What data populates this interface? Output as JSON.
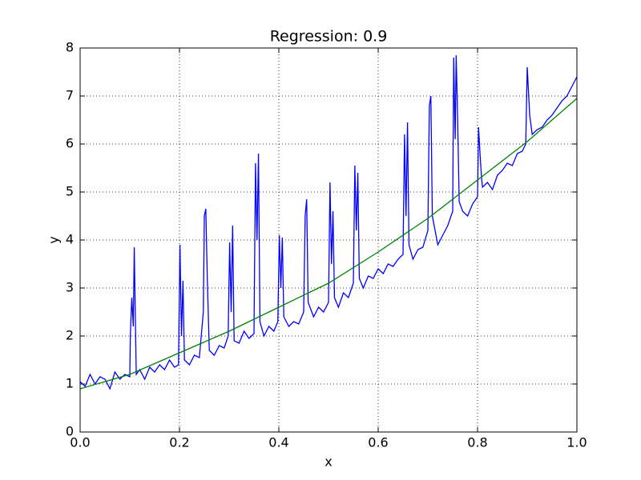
{
  "chart_data": {
    "type": "line",
    "title": "Regression: 0.9",
    "x_label": "x",
    "y_label": "y",
    "xlim": [
      0,
      1
    ],
    "ylim": [
      0,
      8
    ],
    "xticks": [
      {
        "value": 0,
        "label": "0.0"
      },
      0.2,
      0.4,
      0.6,
      0.8,
      {
        "value": 1,
        "label": "1.0"
      }
    ],
    "yticks": [
      0,
      1,
      2,
      3,
      4,
      5,
      6,
      7,
      8
    ],
    "grid": true,
    "series": [
      {
        "color": "#0000ff",
        "x": [
          0,
          0.01,
          0.02,
          0.03,
          0.04,
          0.05,
          0.06,
          0.07,
          0.08,
          0.09,
          0.1,
          0.101,
          0.104,
          0.107,
          0.109,
          0.111,
          0.113,
          0.12,
          0.13,
          0.14,
          0.15,
          0.16,
          0.17,
          0.18,
          0.19,
          0.198,
          0.201,
          0.204,
          0.207,
          0.21,
          0.22,
          0.23,
          0.24,
          0.248,
          0.25,
          0.253,
          0.256,
          0.26,
          0.27,
          0.28,
          0.29,
          0.298,
          0.301,
          0.304,
          0.307,
          0.31,
          0.32,
          0.33,
          0.34,
          0.35,
          0.353,
          0.356,
          0.359,
          0.362,
          0.37,
          0.38,
          0.39,
          0.398,
          0.401,
          0.404,
          0.407,
          0.41,
          0.42,
          0.43,
          0.44,
          0.45,
          0.453,
          0.456,
          0.459,
          0.47,
          0.48,
          0.49,
          0.5,
          0.503,
          0.506,
          0.509,
          0.512,
          0.52,
          0.53,
          0.54,
          0.55,
          0.553,
          0.556,
          0.559,
          0.562,
          0.57,
          0.58,
          0.59,
          0.6,
          0.61,
          0.62,
          0.63,
          0.64,
          0.65,
          0.653,
          0.656,
          0.659,
          0.662,
          0.67,
          0.68,
          0.69,
          0.7,
          0.703,
          0.706,
          0.709,
          0.72,
          0.73,
          0.74,
          0.75,
          0.752,
          0.755,
          0.757,
          0.76,
          0.763,
          0.77,
          0.78,
          0.79,
          0.8,
          0.802,
          0.805,
          0.808,
          0.81,
          0.82,
          0.83,
          0.84,
          0.85,
          0.86,
          0.87,
          0.88,
          0.89,
          0.897,
          0.9,
          0.905,
          0.91,
          0.92,
          0.93,
          0.94,
          0.95,
          0.96,
          0.97,
          0.98,
          0.99,
          1
        ],
        "values": [
          1.05,
          0.95,
          1.2,
          1.0,
          1.15,
          1.1,
          0.9,
          1.25,
          1.1,
          1.2,
          1.15,
          2.0,
          2.8,
          2.2,
          3.85,
          2.5,
          1.2,
          1.3,
          1.1,
          1.35,
          1.25,
          1.4,
          1.3,
          1.5,
          1.35,
          1.4,
          3.9,
          2.0,
          3.15,
          1.5,
          1.4,
          1.6,
          1.55,
          2.5,
          4.5,
          4.65,
          3.2,
          1.7,
          1.6,
          1.8,
          1.75,
          2.0,
          3.95,
          2.5,
          4.3,
          1.9,
          1.85,
          2.1,
          1.95,
          2.05,
          5.6,
          4.0,
          5.8,
          2.3,
          2.0,
          2.2,
          2.1,
          2.3,
          4.1,
          3.0,
          4.05,
          2.4,
          2.2,
          2.3,
          2.25,
          2.5,
          4.5,
          4.85,
          2.7,
          2.4,
          2.6,
          2.5,
          2.7,
          5.2,
          3.5,
          4.6,
          2.8,
          2.6,
          2.9,
          2.8,
          3.1,
          5.55,
          4.2,
          5.4,
          3.2,
          3.0,
          3.25,
          3.2,
          3.4,
          3.3,
          3.5,
          3.45,
          3.6,
          3.7,
          6.2,
          4.5,
          6.45,
          3.9,
          3.6,
          3.8,
          3.85,
          4.2,
          6.8,
          7.0,
          4.5,
          3.9,
          4.1,
          4.3,
          4.6,
          7.8,
          6.1,
          7.85,
          6.5,
          4.8,
          4.6,
          4.5,
          4.75,
          4.9,
          6.35,
          5.8,
          5.3,
          5.1,
          5.2,
          5.05,
          5.35,
          5.45,
          5.6,
          5.55,
          5.8,
          5.85,
          6.0,
          7.6,
          6.6,
          6.2,
          6.3,
          6.35,
          6.5,
          6.6,
          6.75,
          6.9,
          7.0,
          7.2,
          7.4
        ]
      },
      {
        "color": "#008000",
        "x": [
          0,
          0.1,
          0.2,
          0.3,
          0.4,
          0.5,
          0.6,
          0.7,
          0.8,
          0.9,
          1
        ],
        "values": [
          0.9,
          1.2,
          1.65,
          2.1,
          2.6,
          3.1,
          3.75,
          4.45,
          5.25,
          6.05,
          6.95
        ]
      }
    ]
  }
}
